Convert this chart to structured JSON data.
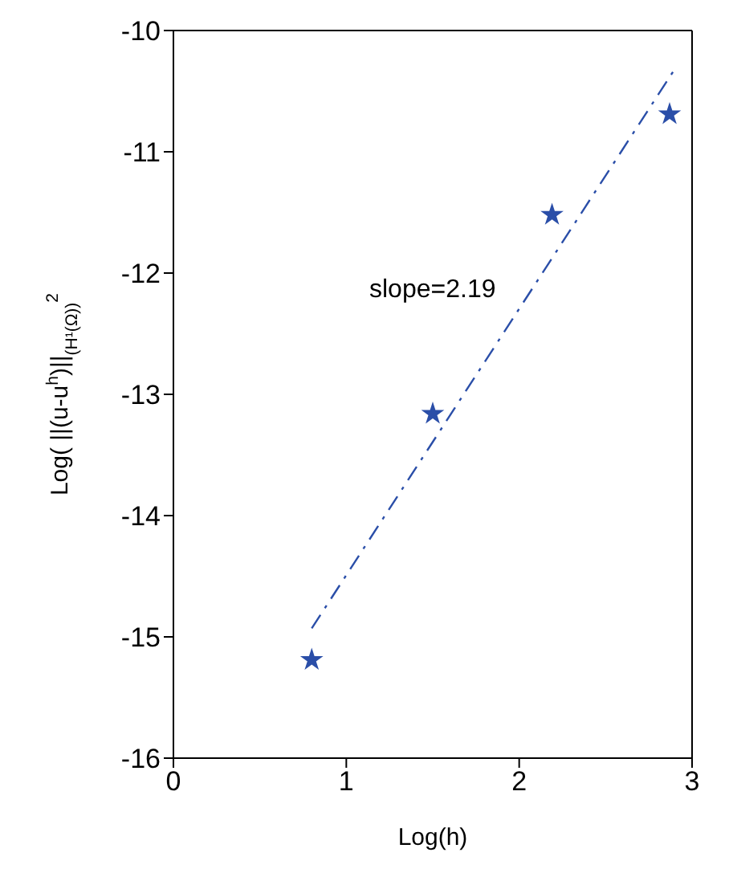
{
  "chart_data": {
    "type": "scatter",
    "xlabel": "Log(h)",
    "ylabel": "Log( ||(u-u$^{h}$)||$_{(H¹(Ω))}$$^{2}$",
    "xlim": [
      0,
      3
    ],
    "xticks": [
      0,
      1,
      2,
      3
    ],
    "ylim": [
      -16,
      -10
    ],
    "yticks": [
      -16,
      -15,
      -14,
      -13,
      -12,
      -11,
      -10
    ],
    "marker": "star",
    "series": [
      {
        "color": "#2a4ea8",
        "x": [
          0.8,
          1.5,
          2.19,
          2.87
        ],
        "values": [
          -15.19,
          -13.16,
          -11.52,
          -10.69
        ]
      },
      {
        "type": "line",
        "color": "#2a4ea8",
        "line_style": "dashed",
        "marker": "none",
        "x": [
          0.8,
          2.89
        ],
        "values": [
          -14.93,
          -10.34
        ]
      }
    ],
    "annotations": [
      "slope=2.19"
    ]
  }
}
